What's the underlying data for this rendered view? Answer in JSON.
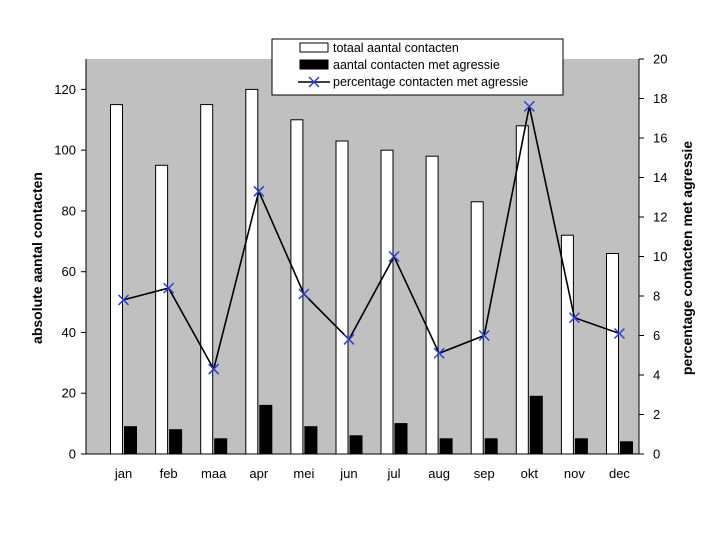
{
  "chart_data": {
    "type": "bar",
    "categories": [
      "jan",
      "feb",
      "maa",
      "apr",
      "mei",
      "jun",
      "jul",
      "aug",
      "sep",
      "okt",
      "nov",
      "dec"
    ],
    "series": [
      {
        "name": "totaal aantal contacten",
        "type": "bar",
        "axis": "left",
        "color": "#ffffff",
        "values": [
          115,
          95,
          115,
          120,
          110,
          103,
          100,
          98,
          83,
          108,
          72,
          66
        ]
      },
      {
        "name": "aantal contacten met agressie",
        "type": "bar",
        "axis": "left",
        "color": "#000000",
        "values": [
          9,
          8,
          5,
          16,
          9,
          6,
          10,
          5,
          5,
          19,
          5,
          4
        ]
      },
      {
        "name": "percentage contacten met agressie",
        "type": "line",
        "axis": "right",
        "color": "#000000",
        "marker_color": "#2a3fd6",
        "marker": "x",
        "values": [
          7.8,
          8.4,
          4.3,
          13.3,
          8.1,
          5.8,
          10.0,
          5.1,
          6.0,
          17.6,
          6.9,
          6.1
        ]
      }
    ],
    "ylabel": "absolute aantal contacten",
    "ylabel_right": "percentage contacten met agressie",
    "ylim": [
      0,
      130
    ],
    "yticks": [
      0,
      20,
      40,
      60,
      80,
      100,
      120
    ],
    "ylim_right": [
      0,
      20
    ],
    "yticks_right": [
      0,
      2,
      4,
      6,
      8,
      10,
      12,
      14,
      16,
      18,
      20
    ],
    "plot_background": "#c0c0c0",
    "grid": false,
    "legend_position": "top"
  }
}
